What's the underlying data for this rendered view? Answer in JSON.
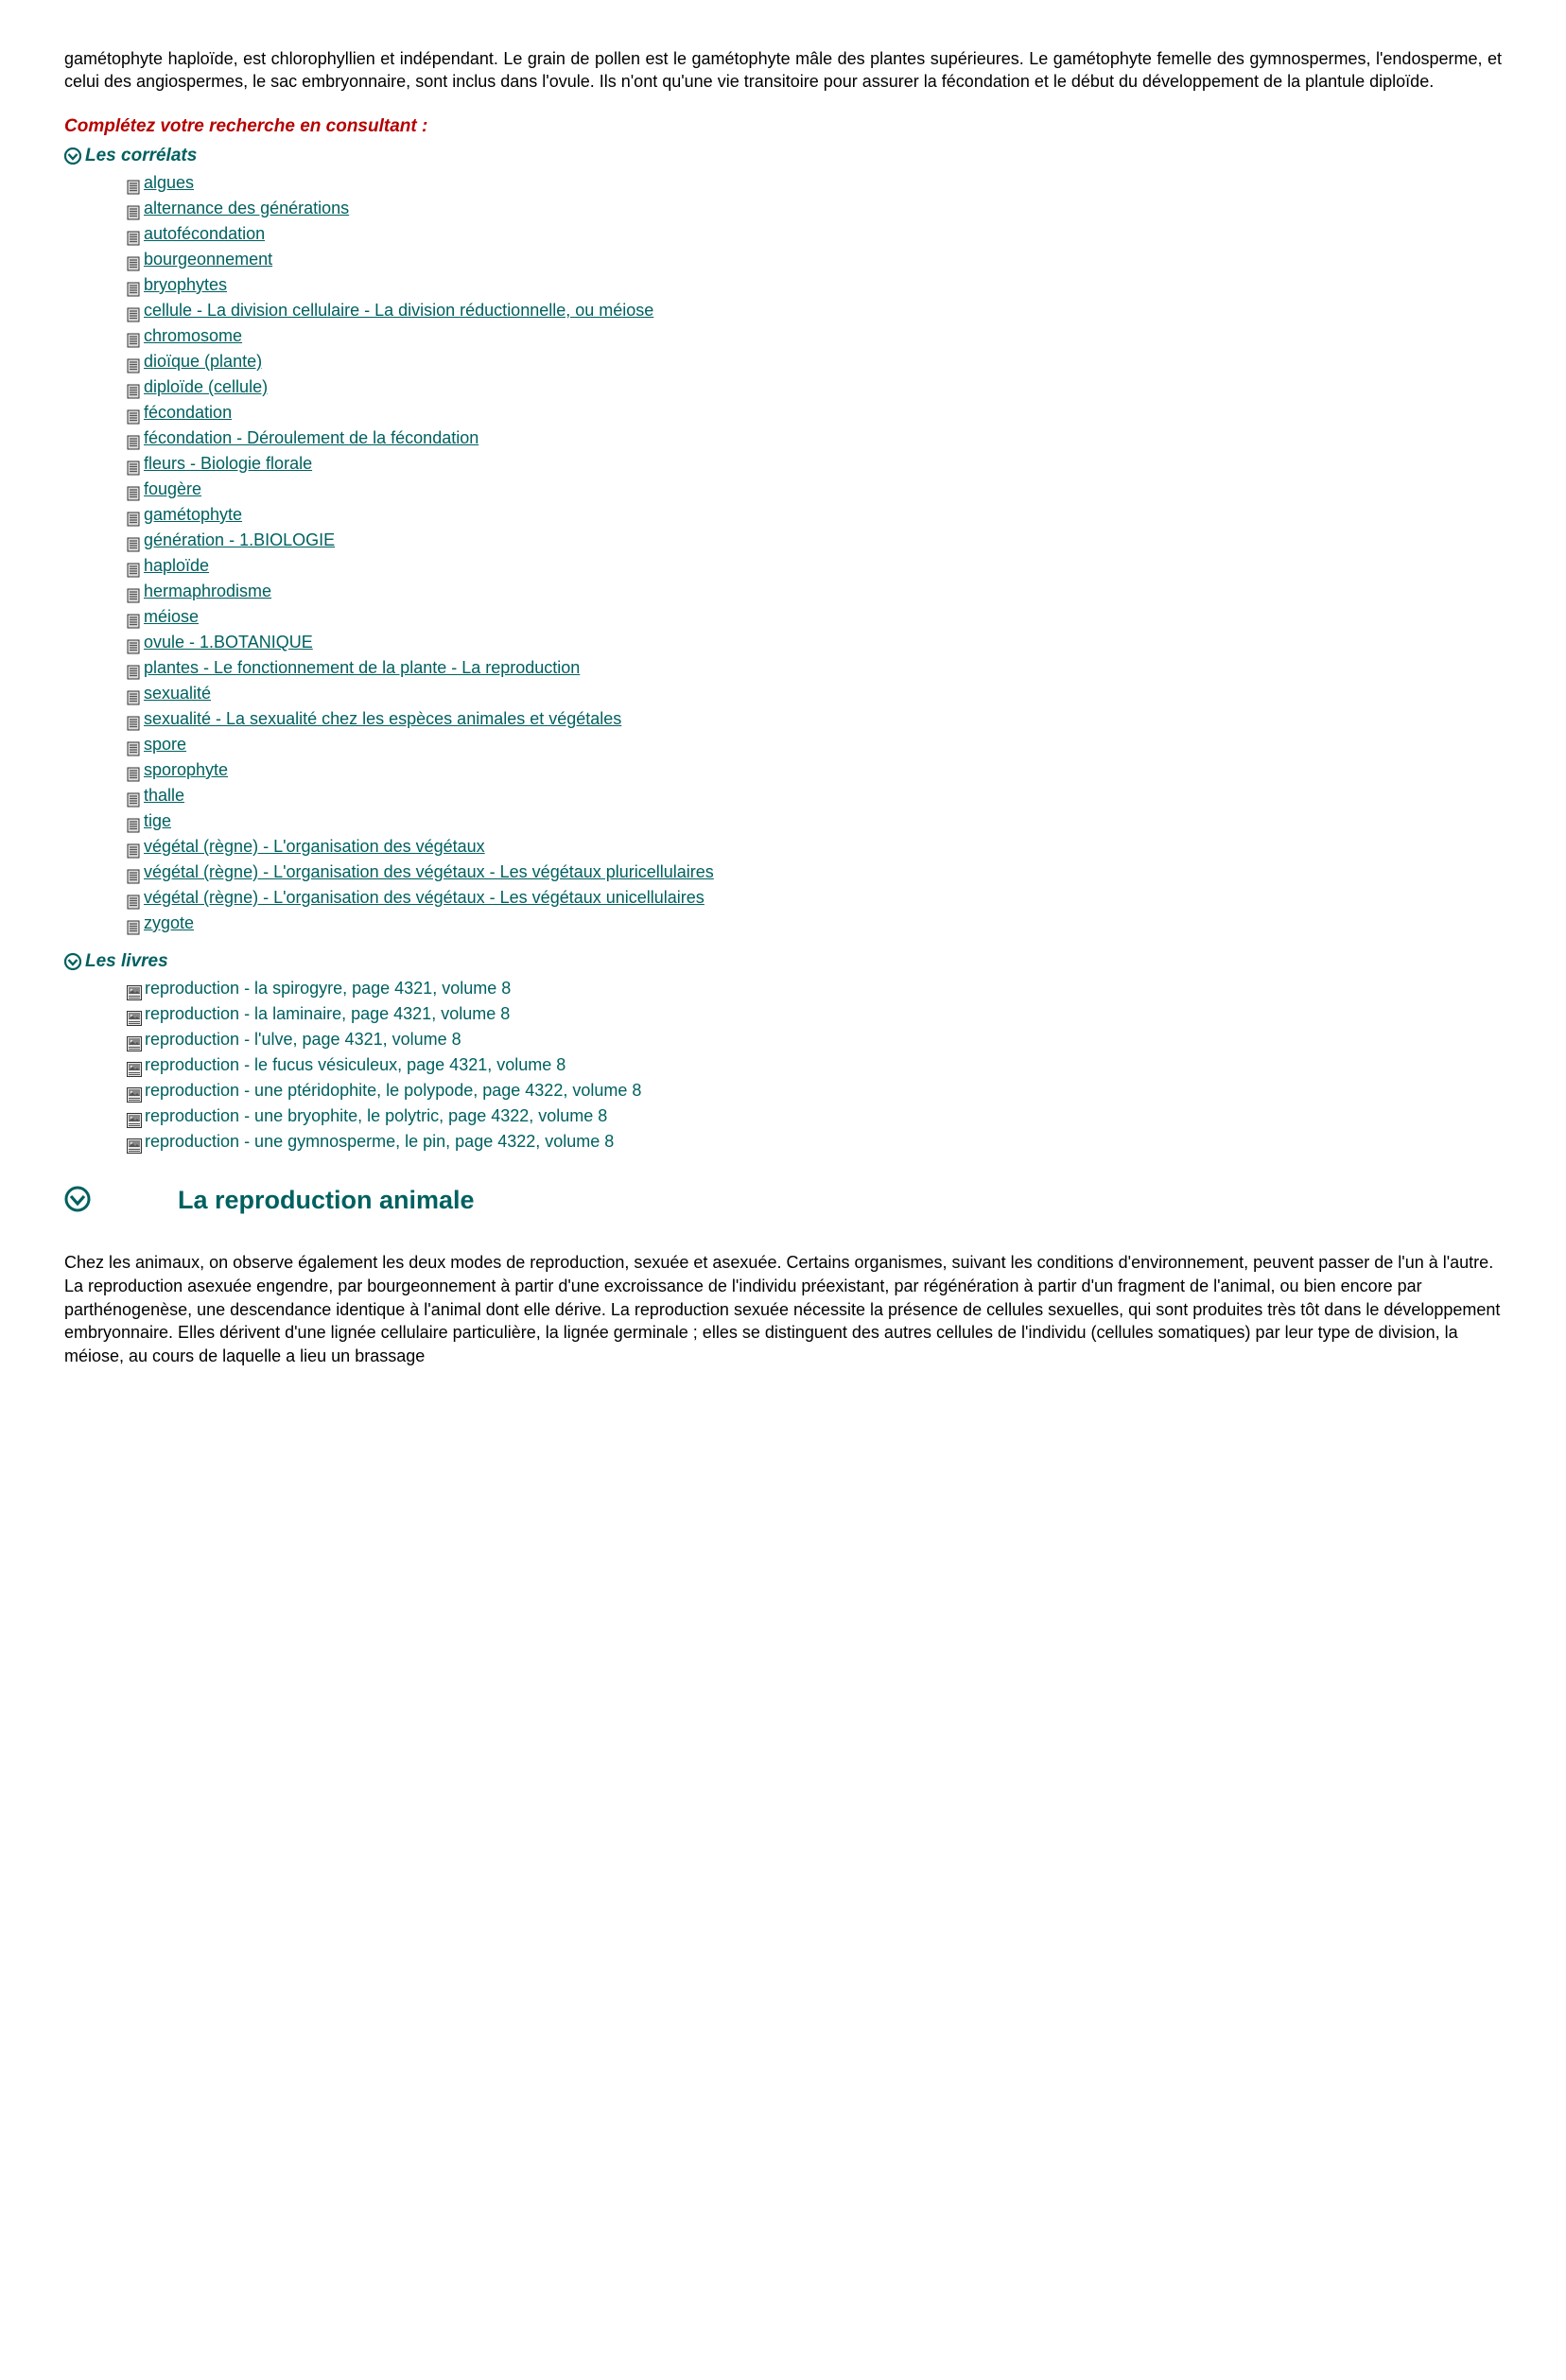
{
  "colors": {
    "teal": "#006060",
    "red": "#b50000",
    "icon_gray": "#888888",
    "icon_dark": "#555555",
    "icon_border": "#333333"
  },
  "intro": "gamétophyte haploïde, est chlorophyllien et indépendant. Le grain de pollen est le gamétophyte mâle des plantes supérieures. Le gamétophyte femelle des gymnospermes, l'endosperme, et celui des angiospermes, le sac embryonnaire, sont inclus dans l'ovule. Ils n'ont qu'une vie transitoire pour assurer la fécondation et le début du développement de la plantule diploïde.",
  "search_title": "Complétez votre recherche en consultant :",
  "correlats_title": "Les corrélats",
  "correlats": [
    "algues",
    "alternance des générations",
    "autofécondation",
    "bourgeonnement",
    "bryophytes",
    "cellule - La division cellulaire - La division réductionnelle, ou méiose",
    "chromosome",
    "dioïque (plante)",
    "diploïde (cellule)",
    "fécondation",
    "fécondation - Déroulement de la fécondation",
    "fleurs - Biologie florale",
    "fougère",
    "gamétophyte",
    "génération - 1.BIOLOGIE",
    "haploïde",
    "hermaphrodisme",
    "méiose",
    "ovule - 1.BOTANIQUE",
    "plantes - Le fonctionnement de la plante - La reproduction",
    "sexualité",
    "sexualité - La sexualité chez les espèces animales et végétales",
    "spore",
    "sporophyte",
    "thalle",
    "tige",
    "végétal (règne) - L'organisation des végétaux",
    "végétal (règne) - L'organisation des végétaux - Les végétaux pluricellulaires",
    "végétal (règne) - L'organisation des végétaux - Les végétaux unicellulaires",
    "zygote"
  ],
  "livres_title": "Les livres",
  "livres": [
    "reproduction - la spirogyre, page 4321, volume 8",
    "reproduction - la laminaire, page 4321, volume 8",
    "reproduction - l'ulve, page 4321, volume 8",
    "reproduction - le fucus vésiculeux, page 4321, volume 8",
    "reproduction - une ptéridophite, le polypode, page 4322, volume 8",
    "reproduction - une bryophite, le polytric, page 4322, volume 8",
    "reproduction - une gymnosperme, le pin, page 4322, volume 8"
  ],
  "heading": "La reproduction animale",
  "body": "Chez les animaux, on observe également les deux modes de reproduction, sexuée et asexuée. Certains organismes, suivant les conditions d'environnement, peuvent passer de l'un à l'autre. La reproduction asexuée engendre, par bourgeonnement à partir d'une excroissance de l'individu préexistant, par régénération à partir d'un fragment de l'animal, ou bien encore par parthénogenèse, une descendance identique à l'animal dont elle dérive. La reproduction sexuée nécessite la présence de cellules sexuelles, qui sont produites très tôt dans le développement embryonnaire. Elles dérivent d'une lignée cellulaire particulière, la lignée germinale ; elles se distinguent des autres cellules de l'individu (cellules somatiques) par leur type de division, la méiose, au cours de laquelle a lieu un brassage"
}
